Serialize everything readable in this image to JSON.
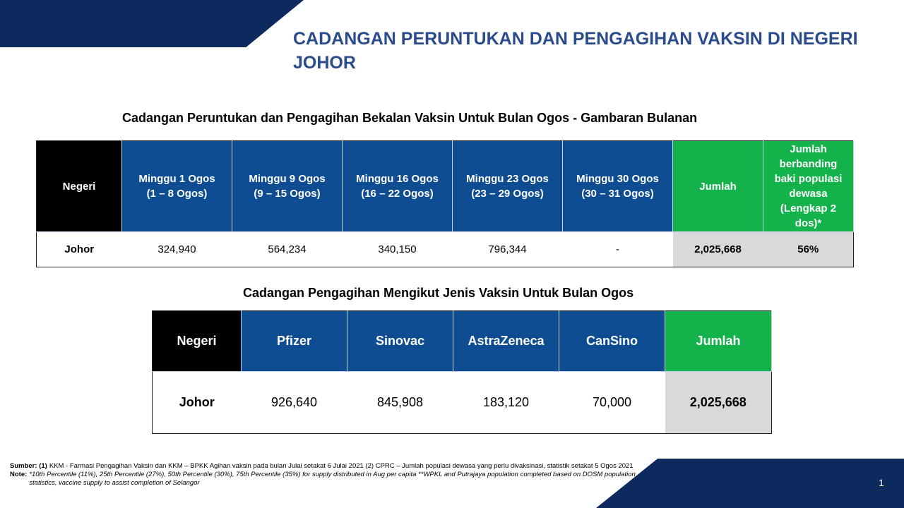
{
  "slide": {
    "title": "CADANGAN PERUNTUKAN DAN PENGAGIHAN VAKSIN DI NEGERI JOHOR",
    "page_number": "1",
    "accent_color": "#0d2a5e",
    "title_color": "#2b4c8c"
  },
  "table1": {
    "title": "Cadangan Peruntukan dan Pengagihan Bekalan Vaksin Untuk Bulan Ogos - Gambaran Bulanan",
    "headers": [
      "Negeri",
      "Minggu  1 Ogos\n(1 – 8 Ogos)",
      "Minggu  9 Ogos\n(9 – 15 Ogos)",
      "Minggu   16 Ogos\n(16 – 22 Ogos)",
      "Minggu  23 Ogos\n(23 – 29 Ogos)",
      "Minggu  30 Ogos\n(30 – 31 Ogos)",
      "Jumlah",
      "Jumlah berbanding baki populasi dewasa (Lengkap 2 dos)*"
    ],
    "row": [
      "Johor",
      "324,940",
      "564,234",
      "340,150",
      "796,344",
      "-",
      "2,025,668",
      "56%"
    ]
  },
  "table2": {
    "title": "Cadangan Pengagihan Mengikut Jenis Vaksin Untuk Bulan Ogos",
    "headers": [
      "Negeri",
      "Pfizer",
      "Sinovac",
      "AstraZeneca",
      "CanSino",
      "Jumlah"
    ],
    "row": [
      "Johor",
      "926,640",
      "845,908",
      "183,120",
      "70,000",
      "2,025,668"
    ]
  },
  "footnotes": {
    "source_label": "Sumber:",
    "source_num": "(1)",
    "source_text": "KKM - Farmasi Pengagihan  Vaksin dan KKM – BPKK  Agihan vaksin pada bulan Julai setakat 6 Julai 2021 (2) CPRC  – Jumlah  populasi dewasa yang perlu divaksinasi, statistik  setakat 5 Ogos 2021",
    "note_label": "Note:",
    "note_text": "*10th Percentile (11%), 25th Percentile (27%), 50th Percentile (30%), 75th Percentile (35%) for supply distributed in Aug per capita **WPKL and Putrajaya population completed based on DOSM population statistics, vaccine supply to assist completion of Selangor"
  }
}
